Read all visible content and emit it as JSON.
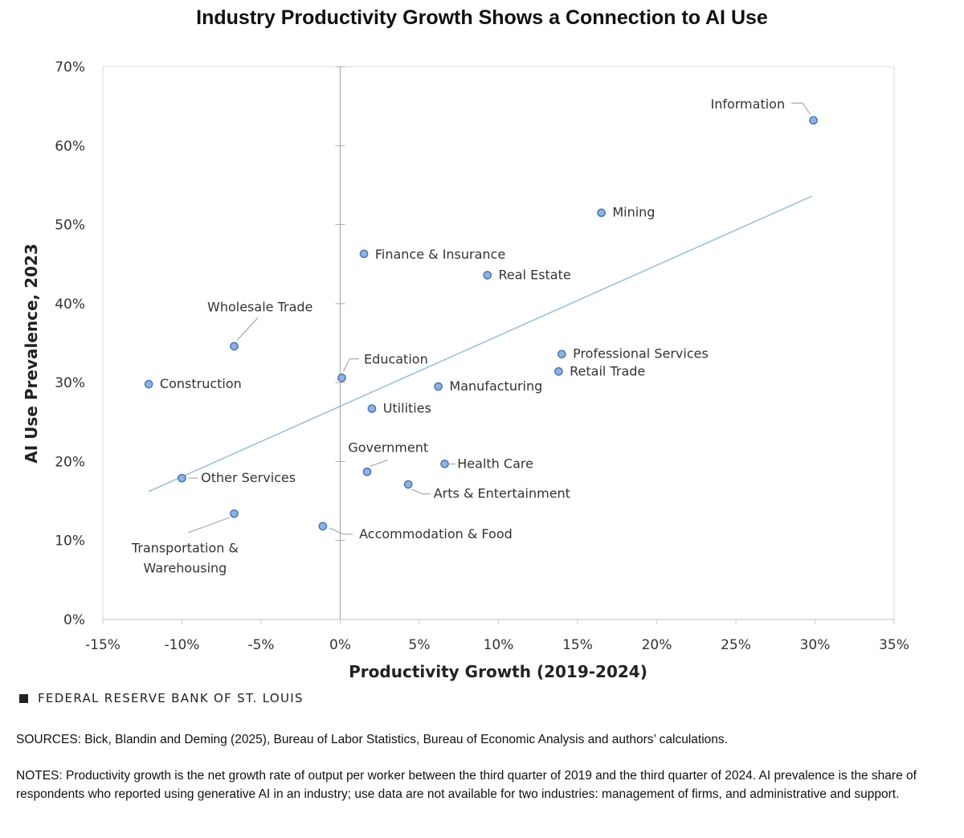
{
  "chart_data": {
    "type": "scatter",
    "title": "Industry Productivity Growth Shows a Connection to AI Use",
    "xlabel": "Productivity  Growth  (2019-2024)",
    "ylabel": "AI Use Prevalence, 2023",
    "xlim": [
      -15,
      35
    ],
    "ylim": [
      0,
      70
    ],
    "xticks": [
      {
        "value": -15,
        "label": "-15%"
      },
      {
        "value": -10,
        "label": "-10%"
      },
      {
        "value": -5,
        "label": "-5%"
      },
      {
        "value": 0,
        "label": "0%"
      },
      {
        "value": 5,
        "label": "5%"
      },
      {
        "value": 10,
        "label": "10%"
      },
      {
        "value": 15,
        "label": "15%"
      },
      {
        "value": 20,
        "label": "20%"
      },
      {
        "value": 25,
        "label": "25%"
      },
      {
        "value": 30,
        "label": "30%"
      },
      {
        "value": 35,
        "label": "35%"
      }
    ],
    "yticks": [
      {
        "value": 0,
        "label": "0%"
      },
      {
        "value": 10,
        "label": "10%"
      },
      {
        "value": 20,
        "label": "20%"
      },
      {
        "value": 30,
        "label": "30%"
      },
      {
        "value": 40,
        "label": "40%"
      },
      {
        "value": 50,
        "label": "50%"
      },
      {
        "value": 60,
        "label": "60%"
      },
      {
        "value": 70,
        "label": "70%"
      }
    ],
    "points": [
      {
        "label": "Information",
        "x": 29.9,
        "y": 63.2,
        "label_lines": [
          "Information"
        ],
        "lx": 23.4,
        "ly": 64.7,
        "anchor": "start",
        "leader": [
          [
            28.5,
            65.4
          ],
          [
            29.2,
            65.4
          ],
          [
            29.7,
            64.0
          ]
        ]
      },
      {
        "label": "Mining",
        "x": 16.5,
        "y": 51.5,
        "label_lines": [
          "Mining"
        ],
        "lx": 17.2,
        "ly": 51.0,
        "anchor": "start"
      },
      {
        "label": "Finance & Insurance",
        "x": 1.5,
        "y": 46.3,
        "label_lines": [
          "Finance & Insurance"
        ],
        "lx": 2.2,
        "ly": 45.7,
        "anchor": "start"
      },
      {
        "label": "Real Estate",
        "x": 9.3,
        "y": 43.6,
        "label_lines": [
          "Real Estate"
        ],
        "lx": 10.0,
        "ly": 43.1,
        "anchor": "start"
      },
      {
        "label": "Wholesale Trade",
        "x": -6.7,
        "y": 34.6,
        "label_lines": [
          "Wholesale Trade"
        ],
        "lx": -8.4,
        "ly": 39.0,
        "anchor": "start",
        "leader": [
          [
            -5.2,
            38.2
          ],
          [
            -6.5,
            35.4
          ]
        ]
      },
      {
        "label": "Education",
        "x": 0.1,
        "y": 30.6,
        "label_lines": [
          "Education"
        ],
        "lx": 1.5,
        "ly": 32.4,
        "anchor": "start",
        "leader": [
          [
            1.2,
            33.0
          ],
          [
            0.6,
            33.0
          ],
          [
            0.2,
            31.4
          ]
        ]
      },
      {
        "label": "Construction",
        "x": -12.1,
        "y": 29.8,
        "label_lines": [
          "Construction"
        ],
        "lx": -11.4,
        "ly": 29.3,
        "anchor": "start"
      },
      {
        "label": "Professional Services",
        "x": 14.0,
        "y": 33.6,
        "label_lines": [
          "Professional Services"
        ],
        "lx": 14.7,
        "ly": 33.1,
        "anchor": "start"
      },
      {
        "label": "Retail Trade",
        "x": 13.8,
        "y": 31.4,
        "label_lines": [
          "Retail Trade"
        ],
        "lx": 14.5,
        "ly": 30.9,
        "anchor": "start"
      },
      {
        "label": "Manufacturing",
        "x": 6.2,
        "y": 29.5,
        "label_lines": [
          "Manufacturing"
        ],
        "lx": 6.9,
        "ly": 29.0,
        "anchor": "start"
      },
      {
        "label": "Utilities",
        "x": 2.0,
        "y": 26.7,
        "label_lines": [
          "Utilities"
        ],
        "lx": 2.7,
        "ly": 26.2,
        "anchor": "start"
      },
      {
        "label": "Government",
        "x": 1.7,
        "y": 18.7,
        "label_lines": [
          "Government"
        ],
        "lx": 0.5,
        "ly": 21.2,
        "anchor": "start",
        "leader": [
          [
            3.0,
            20.2
          ],
          [
            1.9,
            19.4
          ]
        ]
      },
      {
        "label": "Health Care",
        "x": 6.6,
        "y": 19.7,
        "label_lines": [
          "Health Care"
        ],
        "lx": 7.4,
        "ly": 19.2,
        "anchor": "start",
        "leader": [
          [
            6.9,
            19.7
          ],
          [
            7.3,
            19.7
          ]
        ]
      },
      {
        "label": "Other Services",
        "x": -10.0,
        "y": 17.9,
        "label_lines": [
          "Other Services"
        ],
        "lx": -8.8,
        "ly": 17.4,
        "anchor": "start",
        "leader": [
          [
            -9.6,
            17.9
          ],
          [
            -9.0,
            17.9
          ]
        ]
      },
      {
        "label": "Arts & Entertainment",
        "x": 4.3,
        "y": 17.1,
        "label_lines": [
          "Arts & Entertainment"
        ],
        "lx": 5.9,
        "ly": 15.4,
        "anchor": "start",
        "leader": [
          [
            4.5,
            16.5
          ],
          [
            5.2,
            15.9
          ],
          [
            5.7,
            15.9
          ]
        ]
      },
      {
        "label": "Transportation & Warehousing",
        "x": -6.7,
        "y": 13.4,
        "label_lines": [
          "Transportation &",
          "Warehousing"
        ],
        "lx": -9.8,
        "ly": 8.5,
        "anchor": "middle",
        "leader": [
          [
            -9.6,
            11.0
          ],
          [
            -7.0,
            12.9
          ]
        ]
      },
      {
        "label": "Accommodation & Food",
        "x": -1.1,
        "y": 11.8,
        "label_lines": [
          "Accommodation  & Food"
        ],
        "lx": 1.2,
        "ly": 10.3,
        "anchor": "start",
        "leader": [
          [
            -0.7,
            11.6
          ],
          [
            0.2,
            10.8
          ],
          [
            0.8,
            10.8
          ]
        ]
      }
    ],
    "trendline": {
      "x": [
        -12.1,
        29.8
      ],
      "y": [
        16.2,
        53.6
      ]
    },
    "colors": {
      "point_fill": "#8fb3df",
      "point_stroke": "#4a77b4",
      "trendline": "#9cc1dd",
      "axis": "#cccccc",
      "zero_line": "#aaaaaa",
      "leader": "#999999"
    }
  },
  "footer": {
    "brand": "FEDERAL RESERVE BANK OF ST. LOUIS",
    "sources": "SOURCES: Bick, Blandin and Deming (2025), Bureau of Labor Statistics, Bureau of Economic Analysis and authors’ calculations.",
    "notes": "NOTES: Productivity growth is the net growth rate of output per worker between the third quarter of 2019 and the third quarter of 2024. AI prevalence is the share of respondents who reported using generative AI in an industry; use data are not available for two industries: management of firms, and administrative and support."
  }
}
